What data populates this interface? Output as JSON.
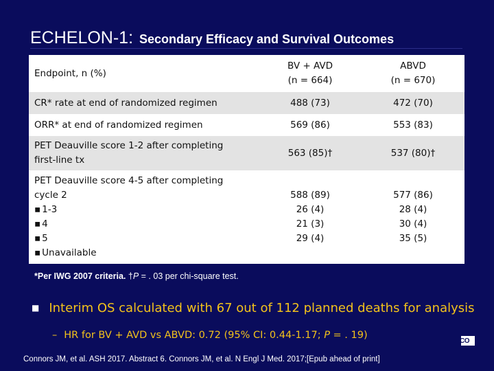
{
  "title": {
    "main": "ECHELON-1:",
    "subtitle": "Secondary Efficacy and Survival Outcomes"
  },
  "table": {
    "header": {
      "endpoint": "Endpoint, n (%)",
      "col1_line1": "BV + AVD",
      "col1_line2": "(n = 664)",
      "col2_line1": "ABVD",
      "col2_line2": "(n = 670)"
    },
    "rows": [
      {
        "endpoint": "CR* rate at end of randomized regimen",
        "bv_avd": "488 (73)",
        "abvd": "472 (70)"
      },
      {
        "endpoint": "ORR* at end of randomized regimen",
        "bv_avd": "569 (86)",
        "abvd": "553 (83)"
      },
      {
        "endpoint_line1": "PET Deauville score 1-2 after completing",
        "endpoint_line2": "first-line tx",
        "bv_avd": "563 (85)†",
        "abvd": "537 (80)†"
      },
      {
        "endpoint_line1": "PET Deauville score 4-5 after completing",
        "endpoint_line2": "cycle 2",
        "sub_items": [
          "1-3",
          "4",
          "5",
          "Unavailable"
        ],
        "bv_avd": [
          "588 (89)",
          "26 (4)",
          "21 (3)",
          "29 (4)"
        ],
        "abvd": [
          "577 (86)",
          "28 (4)",
          "30 (4)",
          "35 (5)"
        ]
      }
    ]
  },
  "footnote": {
    "criteria": "*Per IWG 2007 criteria.",
    "dagger": "†",
    "p": "P",
    "rest": " = . 03 per chi-square test."
  },
  "bullets": {
    "main": "Interim OS calculated with 67 out of 112 planned deaths for analysis",
    "sub_dash": "–",
    "sub_prefix": "HR for BV + AVD vs ABVD: 0.72 (95% CI: 0.44-1.17; ",
    "sub_p": "P",
    "sub_suffix": " = . 19)"
  },
  "logo_text": "CO",
  "citation": "Connors JM, et al. ASH 2017. Abstract 6. Connors JM, et al. N Engl J Med. 2017;[Epub ahead of print]",
  "colors": {
    "background": "#0a0c5c",
    "title": "#ffffff",
    "bullet_text": "#f3c21b",
    "row_alt": "#e3e3e3",
    "row_white": "#ffffff"
  }
}
